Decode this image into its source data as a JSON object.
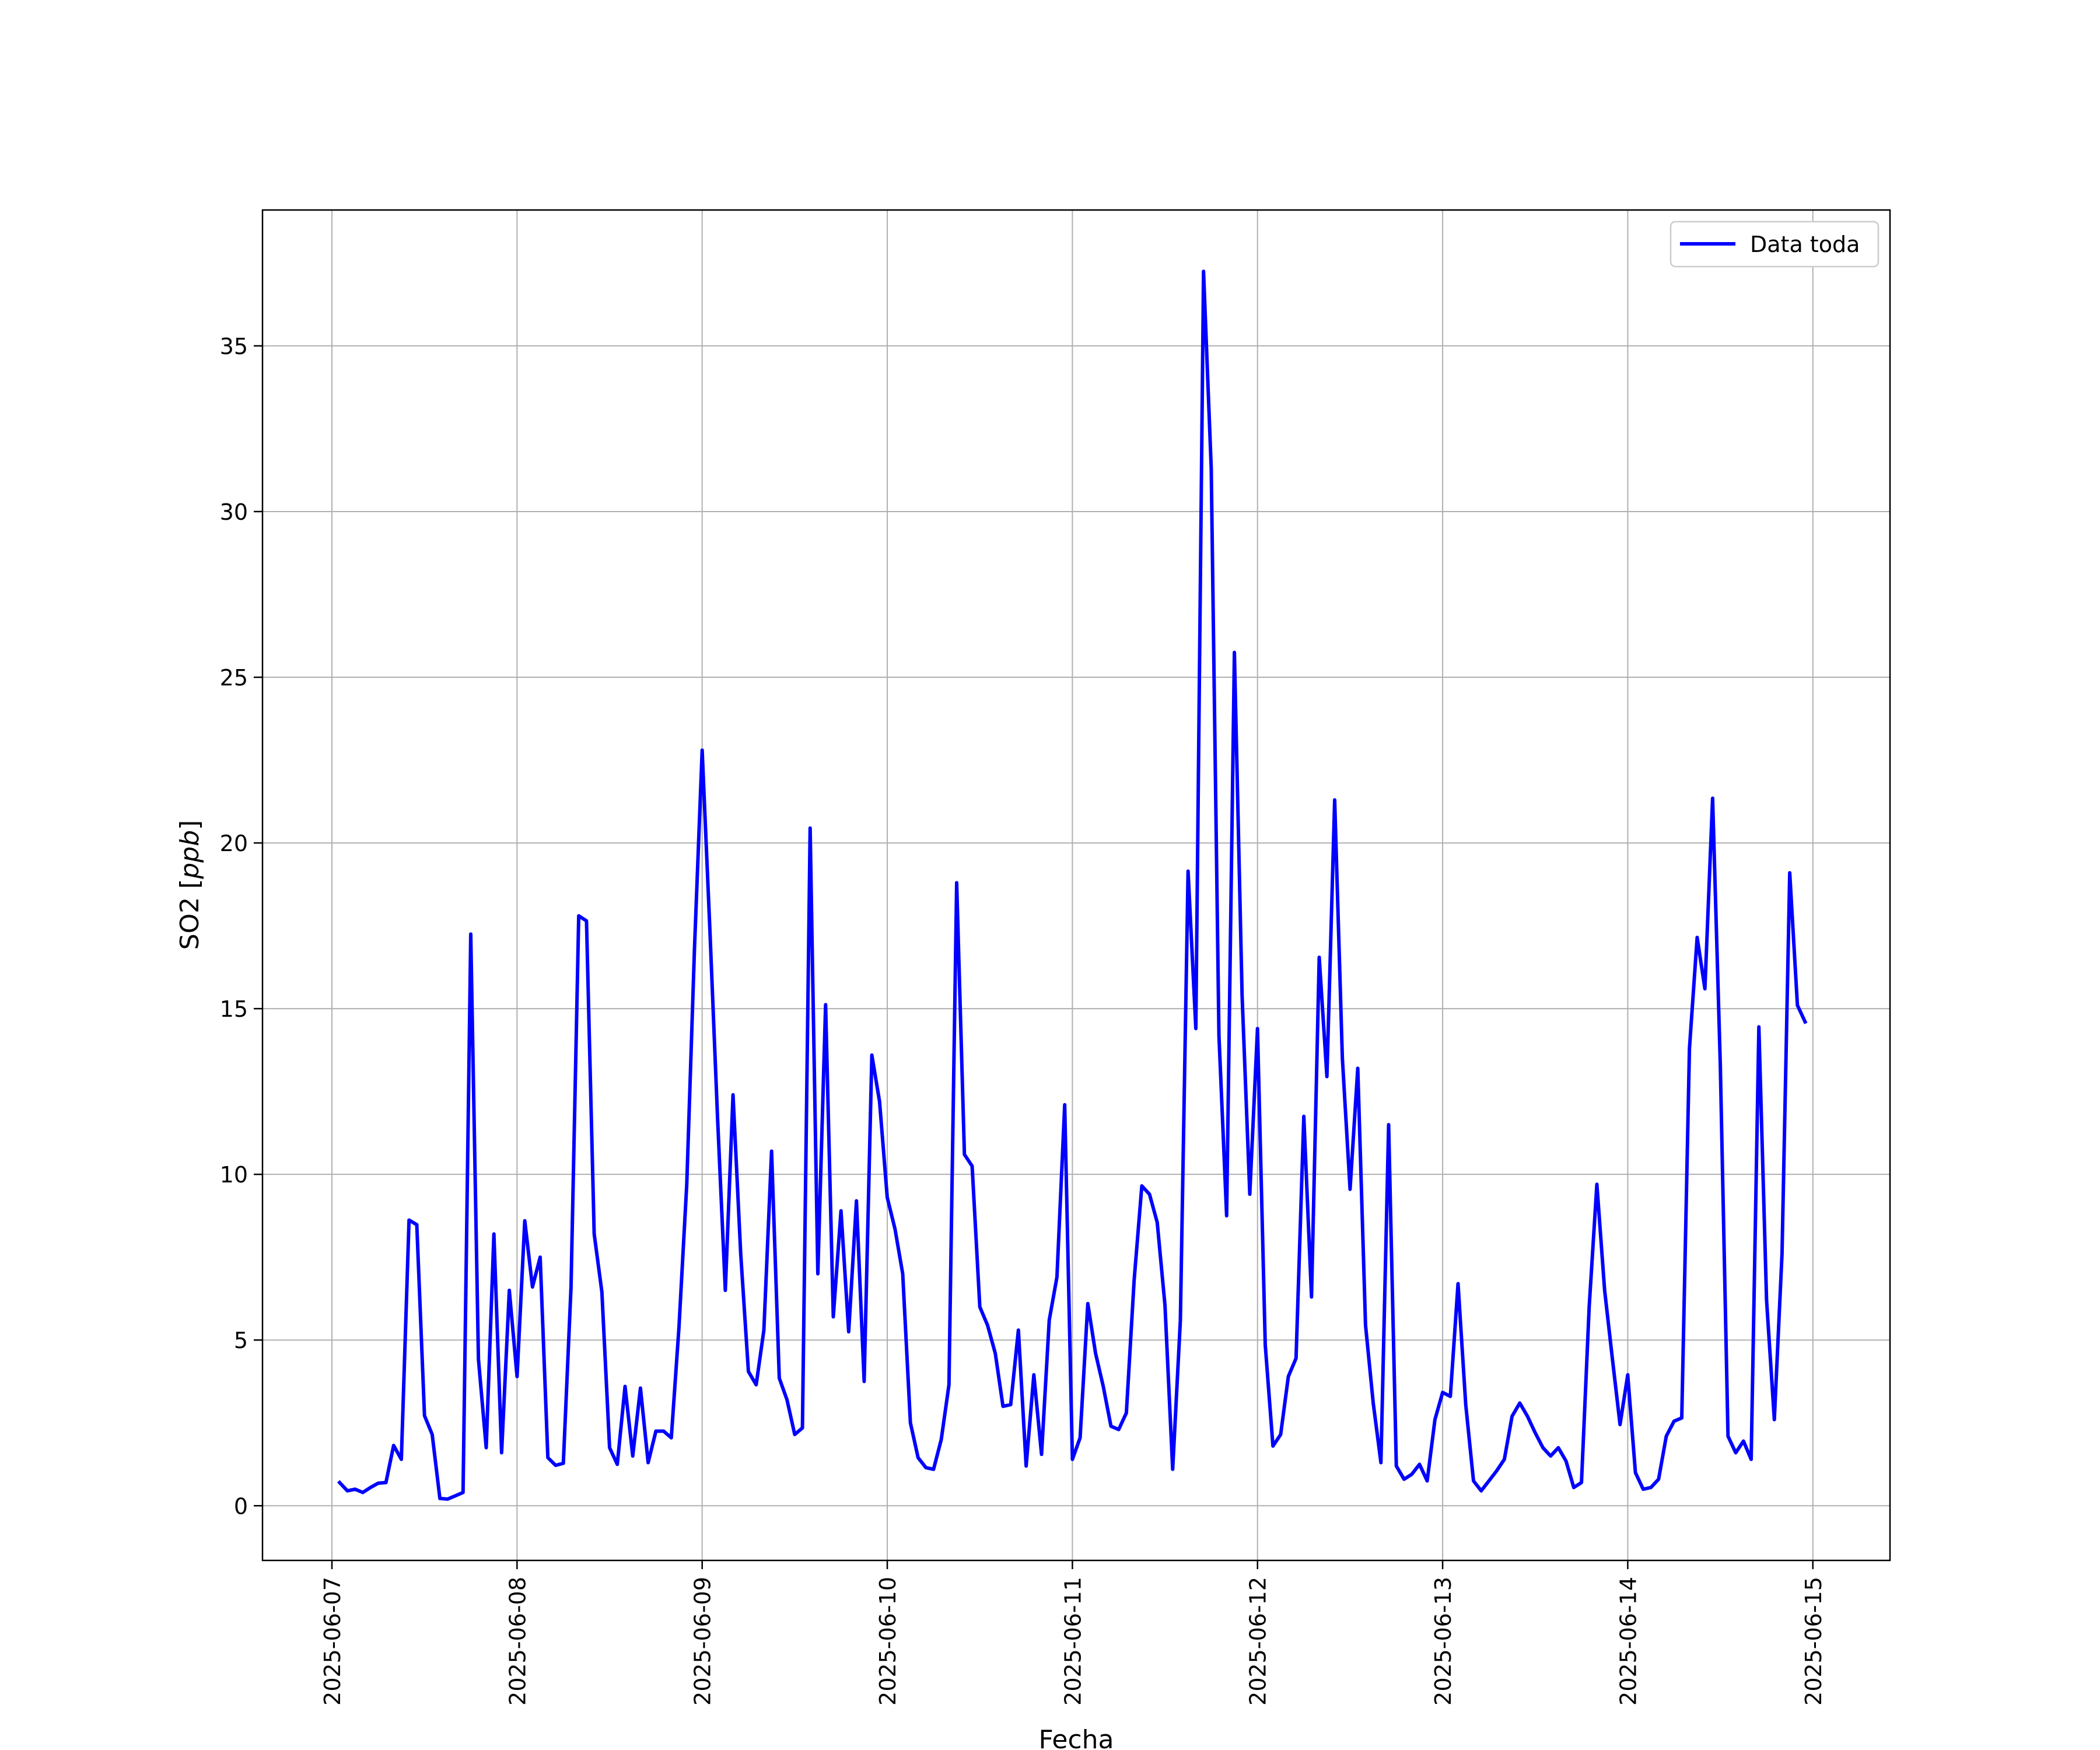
{
  "chart_data": {
    "type": "line",
    "title": "",
    "xlabel": "Fecha",
    "ylabel_text": "SO2",
    "ylabel_unit": "ppb",
    "x_start": "2025-06-07",
    "x_end": "2025-06-15",
    "xlim": [
      "2025-06-06T15:00",
      "2025-06-15T10:00"
    ],
    "ylim": [
      -1.65,
      39.1
    ],
    "x_ticks": [
      "2025-06-07",
      "2025-06-08",
      "2025-06-09",
      "2025-06-10",
      "2025-06-11",
      "2025-06-12",
      "2025-06-13",
      "2025-06-14",
      "2025-06-15"
    ],
    "y_ticks": [
      "0",
      "5",
      "10",
      "15",
      "20",
      "25",
      "30",
      "35"
    ],
    "y_tick_values": [
      0,
      5,
      10,
      15,
      20,
      25,
      30,
      35
    ],
    "grid": true,
    "legend_position": "top-right",
    "series": [
      {
        "name": "Data toda",
        "color": "#0000ff",
        "interval_hours": 1,
        "start_hour": 1,
        "values": [
          0.7,
          0.45,
          0.5,
          0.4,
          0.55,
          0.68,
          0.7,
          1.82,
          1.4,
          8.62,
          8.48,
          2.72,
          2.15,
          0.22,
          0.2,
          0.3,
          0.4,
          17.25,
          4.42,
          1.75,
          8.2,
          1.6,
          6.5,
          3.9,
          8.6,
          6.6,
          7.5,
          1.45,
          1.22,
          1.28,
          6.6,
          17.8,
          17.65,
          8.2,
          6.45,
          1.75,
          1.25,
          3.6,
          1.5,
          3.55,
          1.3,
          2.25,
          2.25,
          2.05,
          5.4,
          9.7,
          16.8,
          22.8,
          17.4,
          11.7,
          6.5,
          12.4,
          7.6,
          4.05,
          3.65,
          5.3,
          10.7,
          3.85,
          3.2,
          2.15,
          2.35,
          20.45,
          7.0,
          15.12,
          5.7,
          8.9,
          5.25,
          9.2,
          3.75,
          13.6,
          12.2,
          9.3,
          8.35,
          7.0,
          2.5,
          1.45,
          1.15,
          1.1,
          2.0,
          3.65,
          18.8,
          10.6,
          10.25,
          6.0,
          5.45,
          4.6,
          3.0,
          3.05,
          5.3,
          1.2,
          3.95,
          1.55,
          5.6,
          6.9,
          12.1,
          1.4,
          2.05,
          6.1,
          4.6,
          3.6,
          2.4,
          2.3,
          2.8,
          6.8,
          9.65,
          9.4,
          8.55,
          6.05,
          1.1,
          5.6,
          19.15,
          14.4,
          37.25,
          31.3,
          14.2,
          8.75,
          25.75,
          15.4,
          9.4,
          14.4,
          4.85,
          1.8,
          2.15,
          3.9,
          4.45,
          11.75,
          6.3,
          16.55,
          12.95,
          21.3,
          13.5,
          9.55,
          13.2,
          5.45,
          3.1,
          1.3,
          11.5,
          1.2,
          0.8,
          0.95,
          1.25,
          0.75,
          2.6,
          3.42,
          3.3,
          6.7,
          3.05,
          0.75,
          0.45,
          0.75,
          1.05,
          1.4,
          2.7,
          3.1,
          2.7,
          2.2,
          1.75,
          1.5,
          1.75,
          1.35,
          0.55,
          0.7,
          6.0,
          9.7,
          6.5,
          4.45,
          2.45,
          3.95,
          1.0,
          0.5,
          0.55,
          0.8,
          2.1,
          2.55,
          2.65,
          13.8,
          17.15,
          15.6,
          21.35,
          13.3,
          2.1,
          1.6,
          1.95,
          1.4,
          14.45,
          6.2,
          2.6,
          7.6,
          19.1,
          15.1,
          14.6
        ]
      }
    ]
  }
}
